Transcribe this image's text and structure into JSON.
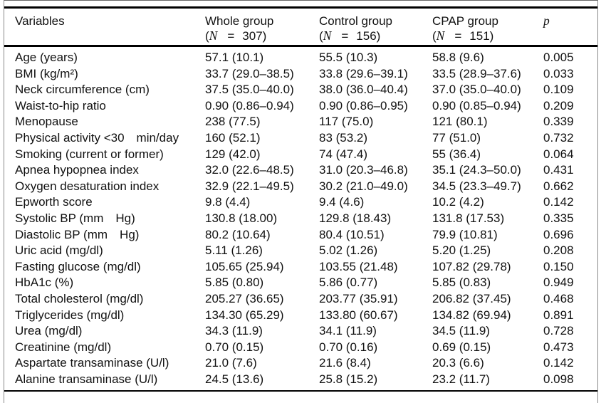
{
  "table": {
    "header": {
      "variables_label": "Variables",
      "n_open": "(",
      "n_symbol": "N",
      "n_equals": "=",
      "p_label": "p",
      "groups": [
        {
          "title": "Whole group",
          "n_close": "307)"
        },
        {
          "title": "Control group",
          "n_close": "156)"
        },
        {
          "title": "CPAP group",
          "n_close": "151)"
        }
      ]
    },
    "rows": [
      {
        "variable": "Age (years)",
        "whole": "57.1 (10.1)",
        "control": "55.5 (10.3)",
        "cpap": "58.8 (9.6)",
        "p": "0.005"
      },
      {
        "variable": "BMI (kg/m²)",
        "whole": "33.7 (29.0–38.5)",
        "control": "33.8 (29.6–39.1)",
        "cpap": "33.5 (28.9–37.6)",
        "p": "0.033"
      },
      {
        "variable": "Neck circumference (cm)",
        "whole": "37.5 (35.0–40.0)",
        "control": "38.0 (36.0–40.4)",
        "cpap": "37.0 (35.0–40.0)",
        "p": "0.109"
      },
      {
        "variable": "Waist-to-hip ratio",
        "whole": "0.90 (0.86–0.94)",
        "control": "0.90 (0.86–0.95)",
        "cpap": "0.90 (0.85–0.94)",
        "p": "0.209"
      },
      {
        "variable": "Menopause",
        "whole": "238 (77.5)",
        "control": "117 (75.0)",
        "cpap": "121 (80.1)",
        "p": "0.339"
      },
      {
        "variable": "Physical activity <30 min/day",
        "whole": "160 (52.1)",
        "control": "83 (53.2)",
        "cpap": "77 (51.0)",
        "p": "0.732"
      },
      {
        "variable": "Smoking (current or former)",
        "whole": "129 (42.0)",
        "control": "74 (47.4)",
        "cpap": "55 (36.4)",
        "p": "0.064"
      },
      {
        "variable": "Apnea hypopnea index",
        "whole": "32.0 (22.6–48.5)",
        "control": "31.0 (20.3–46.8)",
        "cpap": "35.1 (24.3–50.0)",
        "p": "0.431"
      },
      {
        "variable": "Oxygen desaturation index",
        "whole": "32.9 (22.1–49.5)",
        "control": "30.2 (21.0–49.0)",
        "cpap": "34.5 (23.3–49.7)",
        "p": "0.662"
      },
      {
        "variable": "Epworth score",
        "whole": "9.8 (4.4)",
        "control": "9.4 (4.6)",
        "cpap": "10.2 (4.2)",
        "p": "0.142"
      },
      {
        "variable": "Systolic BP (mm Hg)",
        "whole": "130.8 (18.00)",
        "control": "129.8 (18.43)",
        "cpap": "131.8 (17.53)",
        "p": "0.335"
      },
      {
        "variable": "Diastolic BP (mm Hg)",
        "whole": "80.2 (10.64)",
        "control": "80.4 (10.51)",
        "cpap": "79.9 (10.81)",
        "p": "0.696"
      },
      {
        "variable": "Uric acid (mg/dl)",
        "whole": "5.11 (1.26)",
        "control": "5.02 (1.26)",
        "cpap": "5.20 (1.25)",
        "p": "0.208"
      },
      {
        "variable": "Fasting glucose (mg/dl)",
        "whole": "105.65 (25.94)",
        "control": "103.55 (21.48)",
        "cpap": "107.82 (29.78)",
        "p": "0.150"
      },
      {
        "variable": "HbA1c (%)",
        "whole": "5.85 (0.80)",
        "control": "5.86 (0.77)",
        "cpap": "5.85 (0.83)",
        "p": "0.949"
      },
      {
        "variable": "Total cholesterol (mg/dl)",
        "whole": "205.27 (36.65)",
        "control": "203.77 (35.91)",
        "cpap": "206.82 (37.45)",
        "p": "0.468"
      },
      {
        "variable": "Triglycerides (mg/dl)",
        "whole": "134.30 (65.29)",
        "control": "133.80 (60.67)",
        "cpap": "134.82 (69.94)",
        "p": "0.891"
      },
      {
        "variable": "Urea (mg/dl)",
        "whole": "34.3 (11.9)",
        "control": "34.1 (11.9)",
        "cpap": "34.5 (11.9)",
        "p": "0.728"
      },
      {
        "variable": "Creatinine (mg/dl)",
        "whole": "0.70 (0.15)",
        "control": "0.70 (0.16)",
        "cpap": "0.69 (0.15)",
        "p": "0.473"
      },
      {
        "variable": "Aspartate transaminase (U/l)",
        "whole": "21.0 (7.6)",
        "control": "21.6 (8.4)",
        "cpap": "20.3 (6.6)",
        "p": "0.142"
      },
      {
        "variable": "Alanine transaminase (U/l)",
        "whole": "24.5 (13.6)",
        "control": "25.8 (15.2)",
        "cpap": "23.2 (11.7)",
        "p": "0.098"
      }
    ]
  },
  "colors": {
    "background": "#ffffff",
    "text": "#111111",
    "rule": "#000000",
    "frame": "#8a8a8a"
  }
}
